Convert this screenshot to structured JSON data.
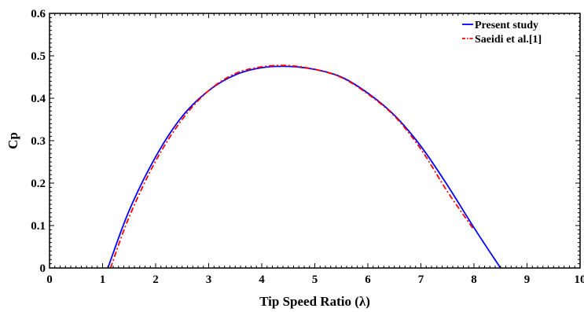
{
  "chart_data": {
    "type": "line",
    "xlabel": "Tip Speed Ratio  (λ)",
    "ylabel": "Cp",
    "xlim": [
      0,
      10
    ],
    "ylim": [
      0,
      0.6
    ],
    "xticks": [
      0,
      1,
      2,
      3,
      4,
      5,
      6,
      7,
      8,
      9,
      10
    ],
    "yticks": [
      0,
      0.1,
      0.2,
      0.3,
      0.4,
      0.5,
      0.6
    ],
    "xtick_labels": [
      "0",
      "1",
      "2",
      "3",
      "4",
      "5",
      "6",
      "7",
      "8",
      "9",
      "10"
    ],
    "ytick_labels": [
      "0",
      "0.1",
      "0.2",
      "0.3",
      "0.4",
      "0.5",
      "0.6"
    ],
    "grid": false,
    "legend": "top-right",
    "series": [
      {
        "name": "Present study",
        "color": "#0000ff",
        "style": "solid",
        "x": [
          1.1,
          1.5,
          2.0,
          2.5,
          3.0,
          3.5,
          4.0,
          4.5,
          5.0,
          5.5,
          6.0,
          6.5,
          7.0,
          7.5,
          8.0,
          8.5
        ],
        "y": [
          0.0,
          0.135,
          0.262,
          0.357,
          0.418,
          0.455,
          0.472,
          0.475,
          0.468,
          0.45,
          0.412,
          0.36,
          0.287,
          0.195,
          0.095,
          0.0
        ]
      },
      {
        "name": "Saeidi et al.[1]",
        "color": "#ff0000",
        "style": "dashdot",
        "x": [
          1.15,
          1.5,
          2.0,
          2.5,
          3.0,
          3.5,
          4.0,
          4.5,
          5.0,
          5.5,
          6.0,
          6.5,
          7.0,
          7.5,
          8.0
        ],
        "y": [
          0.0,
          0.12,
          0.252,
          0.35,
          0.418,
          0.458,
          0.474,
          0.477,
          0.468,
          0.449,
          0.41,
          0.358,
          0.28,
          0.18,
          0.09
        ]
      }
    ]
  }
}
